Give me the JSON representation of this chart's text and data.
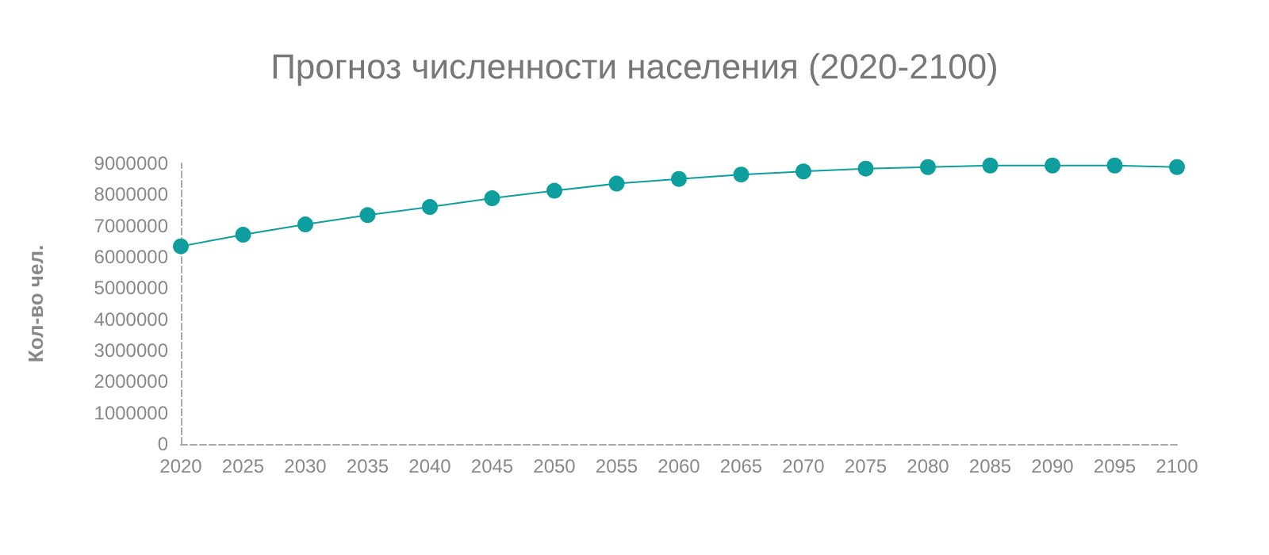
{
  "chart_data": {
    "type": "line",
    "title": "Прогноз численности населения (2020-2100)",
    "ylabel": "Кол-во чел.",
    "categories": [
      "2020",
      "2025",
      "2030",
      "2035",
      "2040",
      "2045",
      "2050",
      "2055",
      "2060",
      "2065",
      "2070",
      "2075",
      "2080",
      "2085",
      "2090",
      "2095",
      "2100"
    ],
    "series": [
      {
        "color": "#0e9e9e",
        "values": [
          6340000,
          6710000,
          7040000,
          7340000,
          7600000,
          7880000,
          8120000,
          8350000,
          8500000,
          8640000,
          8740000,
          8830000,
          8880000,
          8930000,
          8930000,
          8930000,
          8880000
        ]
      }
    ],
    "ylim": [
      0,
      9000000
    ],
    "yticks": [
      0,
      1000000,
      2000000,
      3000000,
      4000000,
      5000000,
      6000000,
      7000000,
      8000000,
      9000000
    ],
    "grid": false,
    "marker": "circle",
    "line_style": "solid"
  }
}
